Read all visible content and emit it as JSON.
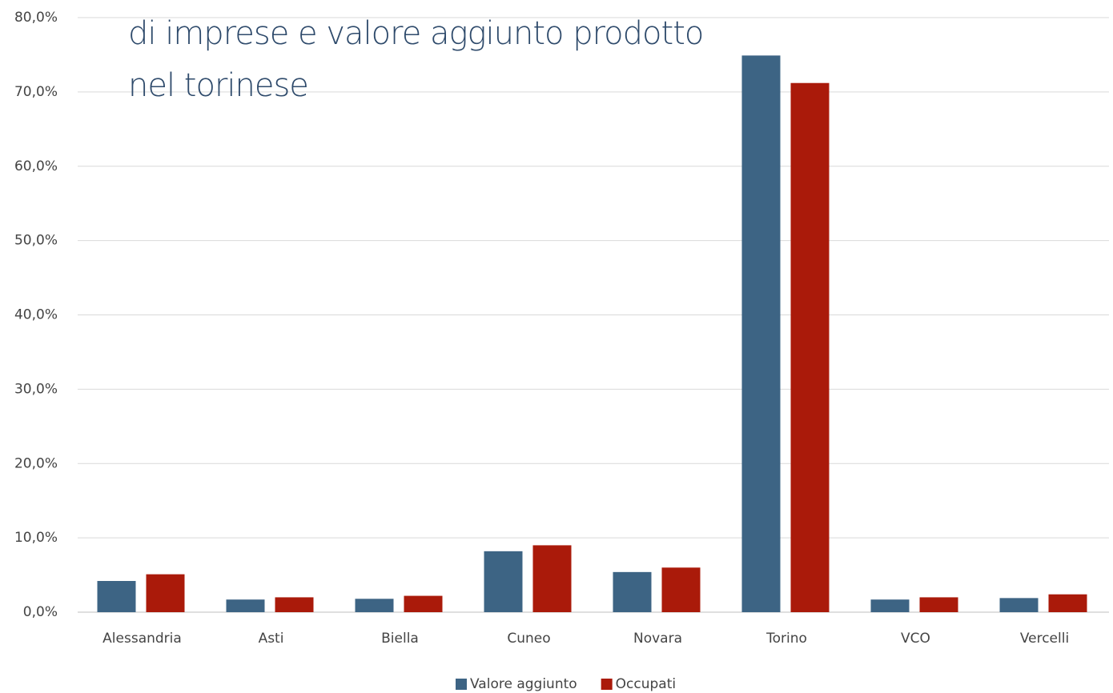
{
  "chart_data": {
    "type": "bar",
    "title": [
      "di imprese e valore aggiunto prodotto",
      "nel torinese"
    ],
    "categories": [
      "Alessandria",
      "Asti",
      "Biella",
      "Cuneo",
      "Novara",
      "Torino",
      "VCO",
      "Vercelli"
    ],
    "series": [
      {
        "name": "Valore aggiunto",
        "color": "#3d6484",
        "values": [
          4.2,
          1.7,
          1.8,
          8.2,
          5.4,
          74.9,
          1.7,
          1.9
        ]
      },
      {
        "name": "Occupati",
        "color": "#aa1a0a",
        "values": [
          5.1,
          2.0,
          2.2,
          9.0,
          6.0,
          71.2,
          2.0,
          2.4
        ]
      }
    ],
    "ylim": [
      0,
      80
    ],
    "yticks": [
      {
        "value": 0,
        "label": "0,0%"
      },
      {
        "value": 10,
        "label": "10,0%"
      },
      {
        "value": 20,
        "label": "20,0%"
      },
      {
        "value": 30,
        "label": "30,0%"
      },
      {
        "value": 40,
        "label": "40,0%"
      },
      {
        "value": 50,
        "label": "50,0%"
      },
      {
        "value": 60,
        "label": "60,0%"
      },
      {
        "value": 70,
        "label": "70,0%"
      },
      {
        "value": 80,
        "label": "80,0%"
      }
    ],
    "grid": true,
    "legend": "bottom"
  }
}
